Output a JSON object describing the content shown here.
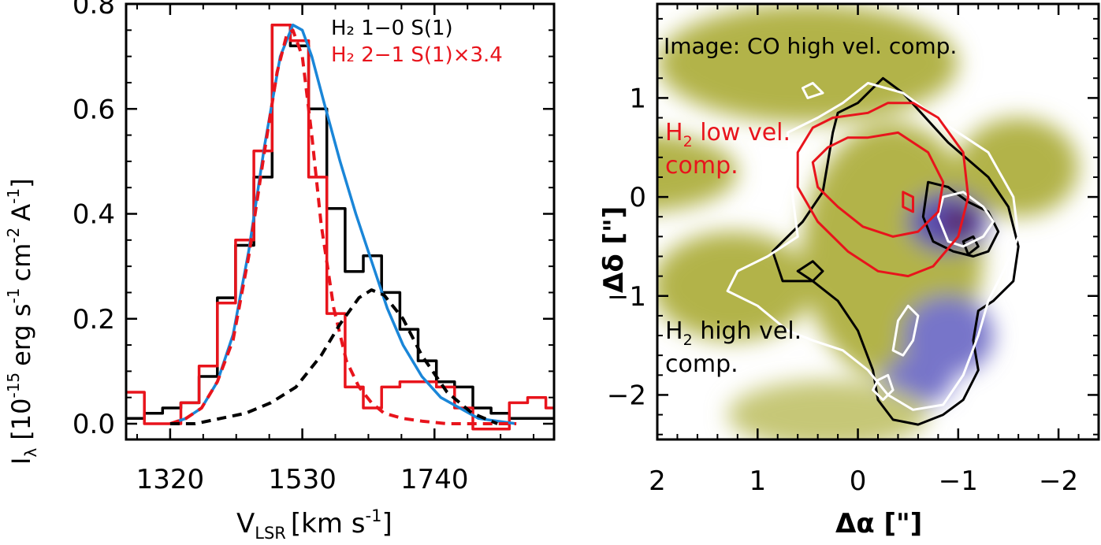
{
  "chart_data": [
    {
      "type": "line",
      "xlabel": "V",
      "xlabel_sub": "LSR",
      "xlabel_unit": "[km s",
      "xlabel_unit_sup": "-1",
      "xlabel_unit_end": "]",
      "ylabel": "I",
      "ylabel_sub": "λ",
      "ylabel_unit": "[10",
      "ylabel_unit_sup": "-15",
      "ylabel_erg": "erg s",
      "ylabel_erg_sup": "-1",
      "ylabel_cm": "cm",
      "ylabel_cm_sup": "-2",
      "ylabel_A": "A",
      "ylabel_A_sup": "-1",
      "ylabel_end": "]",
      "xlim": [
        1250,
        1930
      ],
      "ylim": [
        -0.03,
        0.8
      ],
      "xticks": [
        1320,
        1530,
        1740
      ],
      "xtick_labels": [
        "1320",
        "1530",
        "1740"
      ],
      "yticks": [
        0.0,
        0.2,
        0.4,
        0.6,
        0.8
      ],
      "ytick_labels": [
        "0.0",
        "0.2",
        "0.4",
        "0.6",
        "0.8"
      ],
      "legend": [
        "H₂ 1−0 S(1)",
        "H₂ 2−1 S(1)×3.4"
      ],
      "legend_placement": "top-right",
      "series": [
        {
          "name": "H₂ 1−0 S(1)",
          "style": "steps",
          "color": "#000000",
          "x": [
            1250,
            1279,
            1308,
            1337,
            1366,
            1395,
            1424,
            1453,
            1482,
            1511,
            1540,
            1569,
            1598,
            1627,
            1656,
            1685,
            1714,
            1743,
            1772,
            1801,
            1830,
            1859,
            1888,
            1917,
            1930
          ],
          "y": [
            0.01,
            0.02,
            0.03,
            0.04,
            0.09,
            0.24,
            0.34,
            0.47,
            0.76,
            0.72,
            0.6,
            0.41,
            0.29,
            0.32,
            0.25,
            0.18,
            0.12,
            0.08,
            0.07,
            0.03,
            0.02,
            0.01,
            0.01,
            0.01,
            0.01
          ]
        },
        {
          "name": "H₂ 2−1 S(1)×3.4",
          "style": "steps",
          "color": "#e8141c",
          "x": [
            1250,
            1279,
            1308,
            1337,
            1366,
            1395,
            1424,
            1453,
            1482,
            1511,
            1540,
            1569,
            1598,
            1627,
            1656,
            1685,
            1714,
            1743,
            1772,
            1801,
            1830,
            1859,
            1888,
            1917,
            1930
          ],
          "y": [
            0.06,
            0.0,
            0.0,
            0.04,
            0.11,
            0.23,
            0.35,
            0.52,
            0.76,
            0.73,
            0.47,
            0.21,
            0.07,
            0.03,
            0.07,
            0.08,
            0.08,
            0.07,
            0.03,
            -0.01,
            -0.01,
            0.04,
            0.05,
            0.03,
            0.03
          ]
        },
        {
          "name": "",
          "style": "smooth",
          "color": "#1a86d8",
          "x": [
            1320,
            1345,
            1370,
            1395,
            1420,
            1445,
            1470,
            1495,
            1515,
            1530,
            1545,
            1565,
            1590,
            1615,
            1640,
            1665,
            1690,
            1720,
            1750,
            1780,
            1810,
            1840,
            1870
          ],
          "y": [
            0.0,
            0.01,
            0.03,
            0.08,
            0.17,
            0.33,
            0.53,
            0.7,
            0.76,
            0.75,
            0.7,
            0.61,
            0.5,
            0.4,
            0.31,
            0.22,
            0.15,
            0.09,
            0.05,
            0.03,
            0.01,
            0.005,
            0.0
          ]
        },
        {
          "name": "",
          "style": "dashed",
          "color": "#e8141c",
          "x": [
            1320,
            1345,
            1370,
            1395,
            1420,
            1445,
            1470,
            1490,
            1505,
            1515,
            1530,
            1545,
            1560,
            1580,
            1600,
            1620,
            1640,
            1660,
            1690,
            1720,
            1760,
            1800,
            1870
          ],
          "y": [
            0.0,
            0.01,
            0.03,
            0.08,
            0.16,
            0.32,
            0.52,
            0.67,
            0.74,
            0.75,
            0.7,
            0.55,
            0.38,
            0.22,
            0.12,
            0.07,
            0.04,
            0.02,
            0.01,
            0.005,
            0.0,
            0.0,
            0.0
          ]
        },
        {
          "name": "",
          "style": "dashed",
          "color": "#000000",
          "x": [
            1320,
            1360,
            1400,
            1440,
            1480,
            1520,
            1560,
            1590,
            1620,
            1640,
            1660,
            1690,
            1720,
            1760,
            1800,
            1840
          ],
          "y": [
            0.0,
            0.0,
            0.01,
            0.02,
            0.04,
            0.07,
            0.13,
            0.19,
            0.24,
            0.255,
            0.245,
            0.2,
            0.13,
            0.06,
            0.02,
            0.0
          ]
        }
      ]
    },
    {
      "type": "heatmap",
      "title": "Image: CO high vel. comp.",
      "xlabel": "Δα [\"]",
      "ylabel": "Δδ [\"]",
      "xlim": [
        2.0,
        -2.4
      ],
      "ylim": [
        -2.45,
        1.95
      ],
      "xticks": [
        2,
        1,
        0,
        -1,
        -2
      ],
      "xtick_labels": [
        "2",
        "1",
        "0",
        "−1",
        "−2"
      ],
      "yticks": [
        1,
        0,
        -1,
        -2
      ],
      "ytick_labels": [
        "1",
        "0",
        "−1",
        "−2"
      ],
      "colormap": [
        "#ffffff",
        "#e6e8c2",
        "#c6c777",
        "#b2b34a",
        "#7775c9",
        "#5a4fb4",
        "#5c1020"
      ],
      "annotations": [
        {
          "text_main": "H",
          "text_sub": "2",
          "text_rest": " low vel.",
          "text_line2": "comp.",
          "color": "#e8141c"
        },
        {
          "text_main": "H",
          "text_sub": "2",
          "text_rest": " high vel.",
          "text_line2": "comp.",
          "color": "#000000"
        }
      ],
      "emission_blobs": [
        {
          "x": 2.2,
          "y": 0.25,
          "rx": 1.0,
          "ry": 0.4,
          "level": 0.45
        },
        {
          "x": 1.25,
          "y": -0.9,
          "rx": 0.8,
          "ry": 0.55,
          "level": 0.55
        },
        {
          "x": 0.5,
          "y": 1.35,
          "rx": 1.5,
          "ry": 0.6,
          "level": 0.45
        },
        {
          "x": -0.35,
          "y": -0.55,
          "rx": 0.9,
          "ry": 1.3,
          "level": 0.55
        },
        {
          "x": -0.9,
          "y": -1.4,
          "rx": 0.45,
          "ry": 0.4,
          "level": 0.72
        },
        {
          "x": -0.6,
          "y": -1.85,
          "rx": 0.35,
          "ry": 0.25,
          "level": 0.68
        },
        {
          "x": -0.9,
          "y": -0.25,
          "rx": 0.4,
          "ry": 0.3,
          "level": 0.8
        },
        {
          "x": -1.0,
          "y": -0.25,
          "rx": 0.15,
          "ry": 0.12,
          "level": 1.0
        },
        {
          "x": -1.6,
          "y": 0.3,
          "rx": 0.6,
          "ry": 0.5,
          "level": 0.45
        },
        {
          "x": 0.3,
          "y": -2.2,
          "rx": 1.0,
          "ry": 0.35,
          "level": 0.4
        }
      ],
      "contours": [
        {
          "color": "#000000",
          "x": [
            -0.25,
            -0.45,
            -0.9,
            -1.3,
            -1.5,
            -1.6,
            -1.55,
            -1.35,
            -1.2,
            -1.15,
            -1.2,
            -1.05,
            -0.85,
            -0.6,
            -0.35,
            -0.2,
            -0.15,
            0.0,
            0.2,
            0.45,
            0.75,
            0.85,
            0.55,
            0.35,
            0.3,
            0.25,
            0.2,
            0.0,
            -0.15,
            -0.25
          ],
          "y": [
            1.2,
            1.05,
            0.55,
            0.2,
            -0.1,
            -0.5,
            -0.85,
            -1.05,
            -1.15,
            -1.45,
            -1.75,
            -2.05,
            -2.2,
            -2.3,
            -2.25,
            -2.05,
            -1.75,
            -1.35,
            -1.05,
            -0.85,
            -0.85,
            -0.55,
            -0.25,
            0.05,
            0.35,
            0.65,
            0.85,
            0.95,
            1.1,
            1.2
          ]
        },
        {
          "color": "#000000",
          "x": [
            -0.7,
            -0.9,
            -1.1,
            -1.3,
            -1.4,
            -1.3,
            -1.15,
            -0.95,
            -0.75,
            -0.65,
            -0.7
          ],
          "y": [
            0.15,
            0.1,
            -0.05,
            -0.15,
            -0.35,
            -0.55,
            -0.6,
            -0.55,
            -0.45,
            -0.2,
            0.15
          ]
        },
        {
          "color": "#000000",
          "x": [
            0.35,
            0.45,
            0.6,
            0.45,
            0.35
          ],
          "y": [
            -0.75,
            -0.65,
            -0.75,
            -0.85,
            -0.75
          ]
        },
        {
          "color": "#000000",
          "x": [
            -1.05,
            -1.15,
            -1.2,
            -1.1,
            -1.05
          ],
          "y": [
            -0.45,
            -0.4,
            -0.5,
            -0.58,
            -0.45
          ]
        },
        {
          "color": "#ffffff",
          "x": [
            0.7,
            0.4,
            0.15,
            -0.1,
            -0.45,
            -0.85,
            -1.3,
            -1.55,
            -1.6,
            -1.45,
            -1.3,
            -1.2,
            -1.05,
            -0.85,
            -0.55,
            -0.3,
            -0.1,
            0.15,
            0.45,
            0.7,
            1.0,
            1.3,
            1.2,
            0.9,
            0.6,
            0.65,
            0.7
          ],
          "y": [
            0.65,
            0.8,
            0.95,
            1.15,
            1.05,
            0.75,
            0.45,
            0.0,
            -0.4,
            -0.75,
            -1.05,
            -1.4,
            -1.8,
            -2.1,
            -2.15,
            -2.0,
            -1.75,
            -1.55,
            -1.45,
            -1.35,
            -1.1,
            -0.95,
            -0.75,
            -0.6,
            -0.4,
            0.0,
            0.65
          ]
        },
        {
          "color": "#ffffff",
          "x": [
            -0.85,
            -1.05,
            -1.25,
            -1.35,
            -1.25,
            -1.05,
            -0.9,
            -0.8,
            -0.85
          ],
          "y": [
            0.0,
            0.05,
            -0.1,
            -0.25,
            -0.4,
            -0.5,
            -0.45,
            -0.2,
            0.0
          ]
        },
        {
          "color": "#ffffff",
          "x": [
            -0.45,
            -0.55,
            -0.6,
            -0.5,
            -0.4,
            -0.35,
            -0.45
          ],
          "y": [
            -1.6,
            -1.45,
            -1.2,
            -1.1,
            -1.25,
            -1.55,
            -1.6
          ]
        },
        {
          "color": "#ffffff",
          "x": [
            -0.2,
            -0.3,
            -0.35,
            -0.25,
            -0.15,
            -0.2
          ],
          "y": [
            -1.85,
            -1.8,
            -1.95,
            -2.05,
            -1.95,
            -1.85
          ]
        },
        {
          "color": "#ffffff",
          "x": [
            0.55,
            0.45,
            0.35,
            0.5,
            0.55
          ],
          "y": [
            1.1,
            1.15,
            1.05,
            1.0,
            1.1
          ]
        },
        {
          "color": "#ffffff",
          "x": [
            0.95,
            0.85,
            0.8,
            0.9,
            0.95
          ],
          "y": [
            0.25,
            0.3,
            0.2,
            0.15,
            0.25
          ]
        },
        {
          "color": "#e8141c",
          "x": [
            -0.1,
            -0.3,
            -0.55,
            -0.8,
            -1.05,
            -1.1,
            -1.0,
            -0.75,
            -0.5,
            -0.2,
            0.1,
            0.4,
            0.6,
            0.6,
            0.45,
            0.25,
            -0.1
          ],
          "y": [
            0.85,
            0.95,
            0.95,
            0.8,
            0.45,
            0.0,
            -0.4,
            -0.7,
            -0.8,
            -0.75,
            -0.55,
            -0.25,
            0.1,
            0.45,
            0.7,
            0.8,
            0.85
          ]
        },
        {
          "color": "#e8141c",
          "x": [
            -0.1,
            -0.4,
            -0.7,
            -0.85,
            -0.8,
            -0.6,
            -0.35,
            -0.05,
            0.2,
            0.4,
            0.45,
            0.3,
            0.1,
            -0.1
          ],
          "y": [
            0.6,
            0.65,
            0.45,
            0.15,
            -0.15,
            -0.35,
            -0.4,
            -0.3,
            -0.1,
            0.1,
            0.35,
            0.5,
            0.6,
            0.6
          ]
        },
        {
          "color": "#e8141c",
          "x": [
            -0.45,
            -0.55,
            -0.55,
            -0.45,
            -0.45
          ],
          "y": [
            0.05,
            0.0,
            -0.15,
            -0.1,
            0.05
          ]
        }
      ]
    }
  ]
}
